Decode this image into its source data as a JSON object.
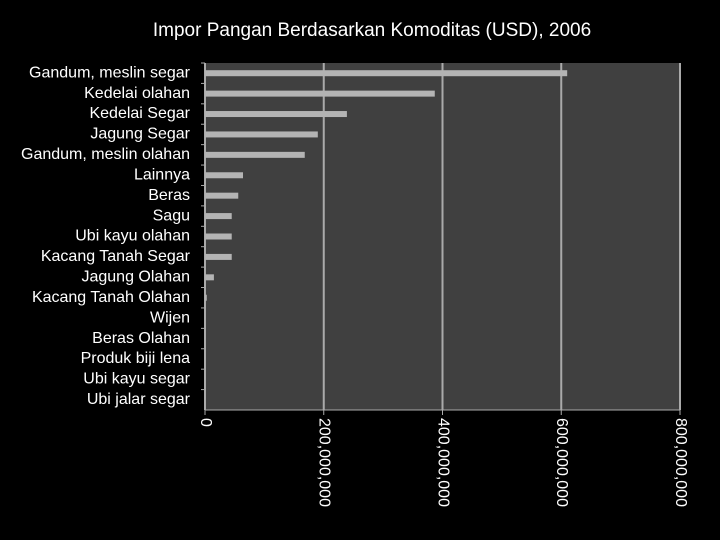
{
  "chart_data": {
    "type": "bar",
    "orientation": "horizontal",
    "title": "Impor Pangan Berdasarkan Komoditas (USD), 2006",
    "categories": [
      "Gandum, meslin segar",
      "Kedelai olahan",
      "Kedelai Segar",
      "Jagung Segar",
      "Gandum, meslin olahan",
      "Lainnya",
      "Beras",
      "Sagu",
      "Ubi kayu olahan",
      "Kacang Tanah Segar",
      "Jagung Olahan",
      "Kacang Tanah Olahan",
      "Wijen",
      "Beras Olahan",
      "Produk biji lena",
      "Ubi kayu segar",
      "Ubi jalar segar"
    ],
    "values": [
      610000000,
      387000000,
      239000000,
      190000000,
      168000000,
      64000000,
      56000000,
      45000000,
      45000000,
      45000000,
      15000000,
      3000000,
      0,
      0,
      0,
      0,
      0
    ],
    "color": "#b4b4b4",
    "xlim": [
      0,
      800000000
    ],
    "xticks": [
      0,
      {
        "value": 200000000,
        "label": "200,000,000"
      },
      {
        "value": 400000000,
        "label": "400,000,000"
      },
      {
        "value": 600000000,
        "label": "600,000,000"
      },
      {
        "value": 800000000,
        "label": "800,000,000"
      }
    ],
    "grid": true
  }
}
